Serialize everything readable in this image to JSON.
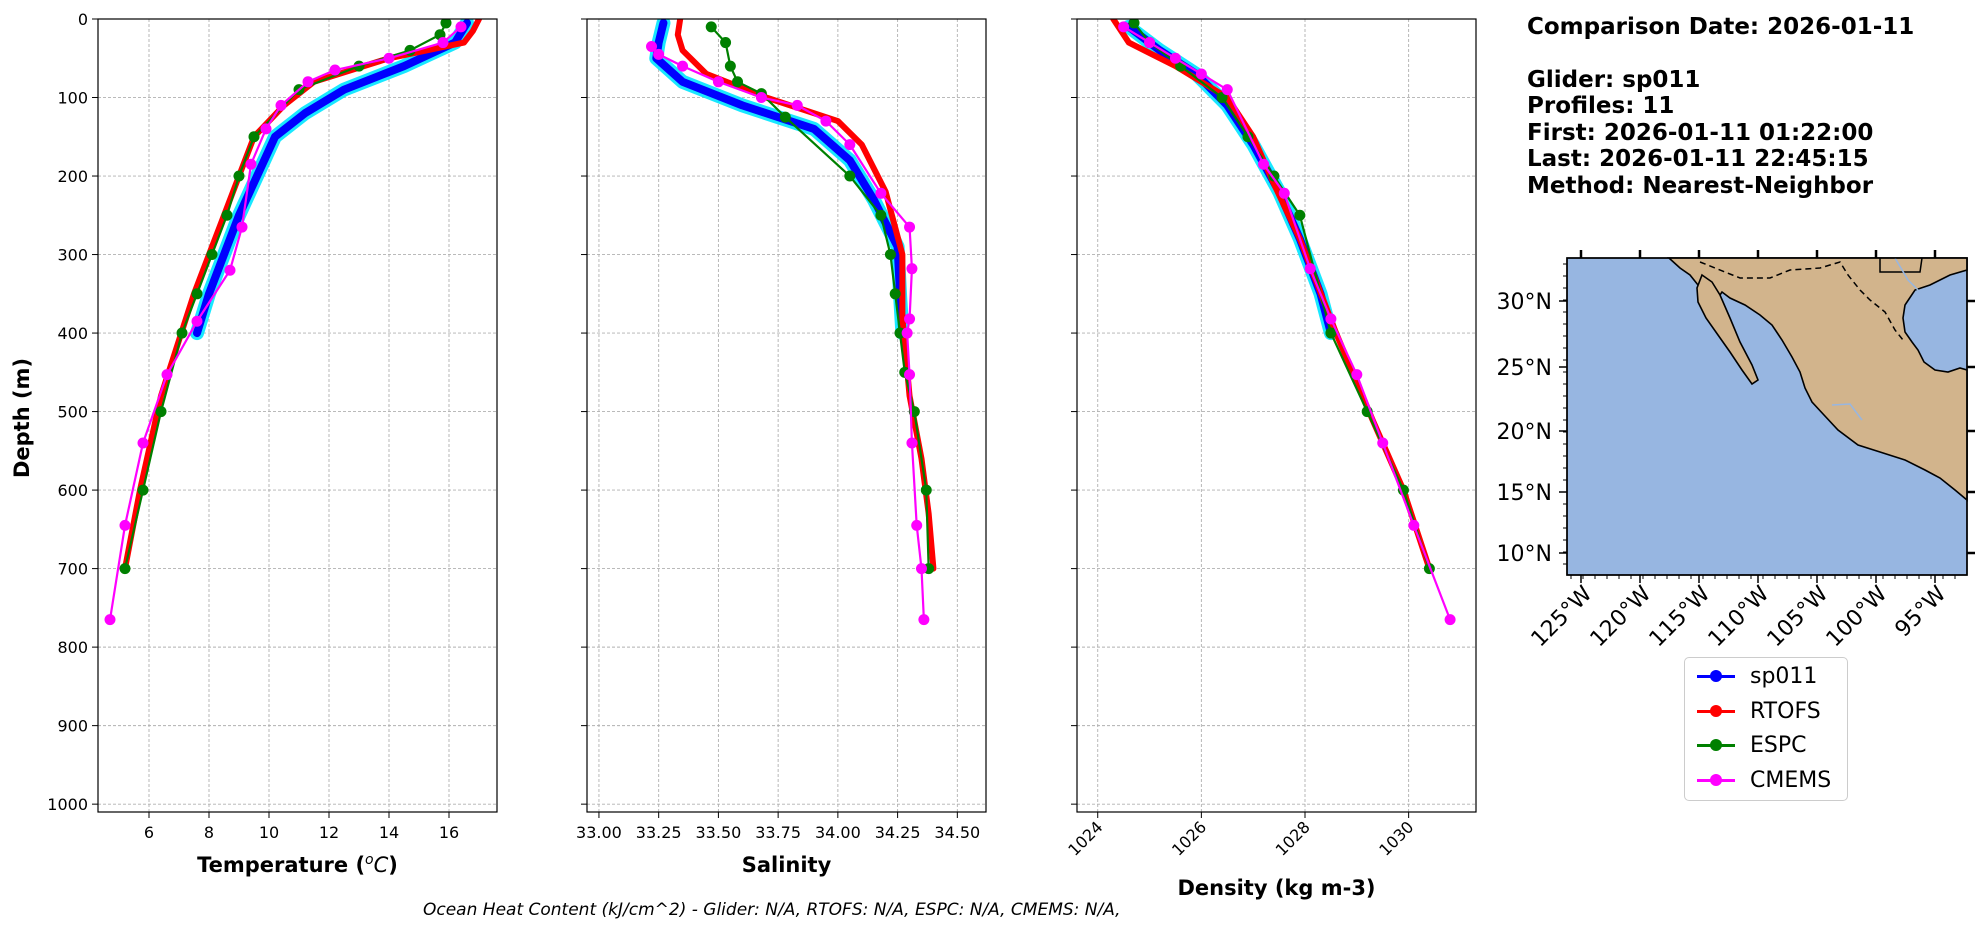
{
  "info": {
    "comparison_date": "Comparison Date: 2026-01-11",
    "glider": "Glider: sp011",
    "profiles": "Profiles: 11",
    "first": "First: 2026-01-11 01:22:00",
    "last": "Last: 2026-01-11 22:45:15",
    "method": "Method: Nearest-Neighbor"
  },
  "footer": "Ocean Heat Content (kJ/cm^2) - Glider: N/A,  RTOFS: N/A,  ESPC: N/A,  CMEMS: N/A,",
  "colors": {
    "glider": "#0000ff",
    "glider_envelope": "#00e5ff",
    "rtofs": "#ff0000",
    "espc": "#008000",
    "cmems": "#ff00ff",
    "land": "#d2b48c",
    "ocean": "#97b6e1"
  },
  "legend": [
    {
      "label": "sp011",
      "color": "#0000ff"
    },
    {
      "label": "RTOFS",
      "color": "#ff0000"
    },
    {
      "label": "ESPC",
      "color": "#008000"
    },
    {
      "label": "CMEMS",
      "color": "#ff00ff"
    }
  ],
  "map": {
    "lat_labels": [
      "30°N",
      "25°N",
      "20°N",
      "15°N",
      "10°N"
    ],
    "lon_labels": [
      "125°W",
      "120°W",
      "115°W",
      "110°W",
      "105°W",
      "100°W",
      "95°W"
    ]
  },
  "chart_data": [
    {
      "type": "line",
      "xlabel": "Temperature (°C)",
      "ylabel": "Depth (m)",
      "xlim": [
        4.3,
        17.6
      ],
      "ylim": [
        1010,
        0
      ],
      "xticks": [
        "6",
        "8",
        "10",
        "12",
        "14",
        "16"
      ],
      "yticks": [
        "0",
        "100",
        "200",
        "300",
        "400",
        "500",
        "600",
        "700",
        "800",
        "900",
        "1000"
      ],
      "grid": true,
      "series": [
        {
          "name": "sp011",
          "x": [
            16.6,
            16.2,
            14.5,
            12.5,
            11.2,
            10.2,
            9.6,
            9.0,
            8.5,
            8.0,
            7.6
          ],
          "y": [
            5,
            30,
            60,
            90,
            120,
            150,
            200,
            250,
            300,
            350,
            400
          ]
        },
        {
          "name": "RTOFS",
          "x": [
            17.0,
            16.8,
            16.5,
            14.0,
            11.5,
            10.5,
            9.5,
            9.0,
            8.4,
            7.5,
            6.4,
            5.7,
            5.2
          ],
          "y": [
            0,
            15,
            30,
            50,
            80,
            110,
            150,
            200,
            260,
            350,
            480,
            600,
            700
          ]
        },
        {
          "name": "ESPC",
          "x": [
            15.9,
            15.7,
            14.7,
            13.0,
            11.0,
            9.5,
            9.0,
            8.6,
            8.1,
            7.6,
            7.1,
            6.4,
            5.8,
            5.2
          ],
          "y": [
            5,
            20,
            40,
            60,
            90,
            150,
            200,
            250,
            300,
            350,
            400,
            500,
            600,
            700
          ]
        },
        {
          "name": "CMEMS",
          "x": [
            16.4,
            15.8,
            14.0,
            12.2,
            11.3,
            10.4,
            9.9,
            9.4,
            9.1,
            8.7,
            7.6,
            6.6,
            5.8,
            5.2,
            4.7
          ],
          "y": [
            10,
            30,
            50,
            65,
            80,
            110,
            140,
            185,
            265,
            320,
            385,
            453,
            540,
            645,
            765
          ]
        }
      ]
    },
    {
      "type": "line",
      "xlabel": "Salinity",
      "ylabel": "",
      "xlim": [
        32.95,
        34.62
      ],
      "ylim": [
        1010,
        0
      ],
      "xticks": [
        "33.00",
        "33.25",
        "33.50",
        "33.75",
        "34.00",
        "34.25",
        "34.50"
      ],
      "grid": true,
      "series": [
        {
          "name": "sp011",
          "x": [
            33.27,
            33.25,
            33.24,
            33.35,
            33.6,
            33.9,
            34.05,
            34.15,
            34.25,
            34.26,
            34.27
          ],
          "y": [
            5,
            30,
            50,
            80,
            110,
            140,
            180,
            230,
            290,
            350,
            400
          ]
        },
        {
          "name": "RTOFS",
          "x": [
            33.34,
            33.33,
            33.35,
            33.45,
            33.7,
            34.0,
            34.1,
            34.2,
            34.27,
            34.27,
            34.3,
            34.35,
            34.38,
            34.4
          ],
          "y": [
            0,
            20,
            40,
            70,
            100,
            130,
            160,
            220,
            300,
            380,
            480,
            560,
            630,
            700
          ]
        },
        {
          "name": "ESPC",
          "x": [
            33.47,
            33.53,
            33.55,
            33.58,
            33.68,
            33.78,
            34.05,
            34.18,
            34.22,
            34.24,
            34.26,
            34.28,
            34.32,
            34.37,
            34.38
          ],
          "y": [
            10,
            30,
            60,
            80,
            95,
            125,
            200,
            250,
            300,
            350,
            400,
            450,
            500,
            600,
            700
          ]
        },
        {
          "name": "CMEMS",
          "x": [
            33.22,
            33.25,
            33.35,
            33.5,
            33.68,
            33.83,
            33.95,
            34.05,
            34.18,
            34.3,
            34.31,
            34.3,
            34.29,
            34.3,
            34.31,
            34.33,
            34.35,
            34.36
          ],
          "y": [
            35,
            45,
            60,
            80,
            100,
            110,
            130,
            160,
            222,
            265,
            318,
            382,
            400,
            453,
            540,
            645,
            700,
            765
          ]
        }
      ]
    },
    {
      "type": "line",
      "xlabel": "Density (kg m-3)",
      "ylabel": "",
      "xlim": [
        1023.6,
        1031.3
      ],
      "ylim": [
        1010,
        0
      ],
      "xticks": [
        "1024",
        "1026",
        "1028",
        "1030"
      ],
      "grid": true,
      "series": [
        {
          "name": "sp011",
          "x": [
            1024.6,
            1025.2,
            1025.9,
            1026.5,
            1027.0,
            1027.5,
            1027.9,
            1028.3,
            1028.5
          ],
          "y": [
            10,
            40,
            70,
            110,
            160,
            220,
            280,
            350,
            400
          ]
        },
        {
          "name": "RTOFS",
          "x": [
            1024.3,
            1024.6,
            1025.5,
            1026.5,
            1027.0,
            1027.4,
            1027.9,
            1028.6,
            1029.3,
            1029.9,
            1030.4
          ],
          "y": [
            0,
            30,
            60,
            100,
            150,
            210,
            280,
            400,
            510,
            600,
            700
          ]
        },
        {
          "name": "ESPC",
          "x": [
            1024.7,
            1025.0,
            1025.6,
            1026.4,
            1026.9,
            1027.4,
            1027.9,
            1028.5,
            1029.2,
            1029.9,
            1030.4
          ],
          "y": [
            5,
            30,
            60,
            100,
            150,
            200,
            250,
            400,
            500,
            600,
            700
          ]
        },
        {
          "name": "CMEMS",
          "x": [
            1024.5,
            1025.0,
            1025.5,
            1026.0,
            1026.5,
            1027.2,
            1027.6,
            1028.1,
            1028.5,
            1029.0,
            1029.5,
            1030.1,
            1030.8
          ],
          "y": [
            10,
            30,
            50,
            70,
            90,
            185,
            222,
            318,
            382,
            453,
            540,
            645,
            765
          ]
        }
      ]
    }
  ]
}
